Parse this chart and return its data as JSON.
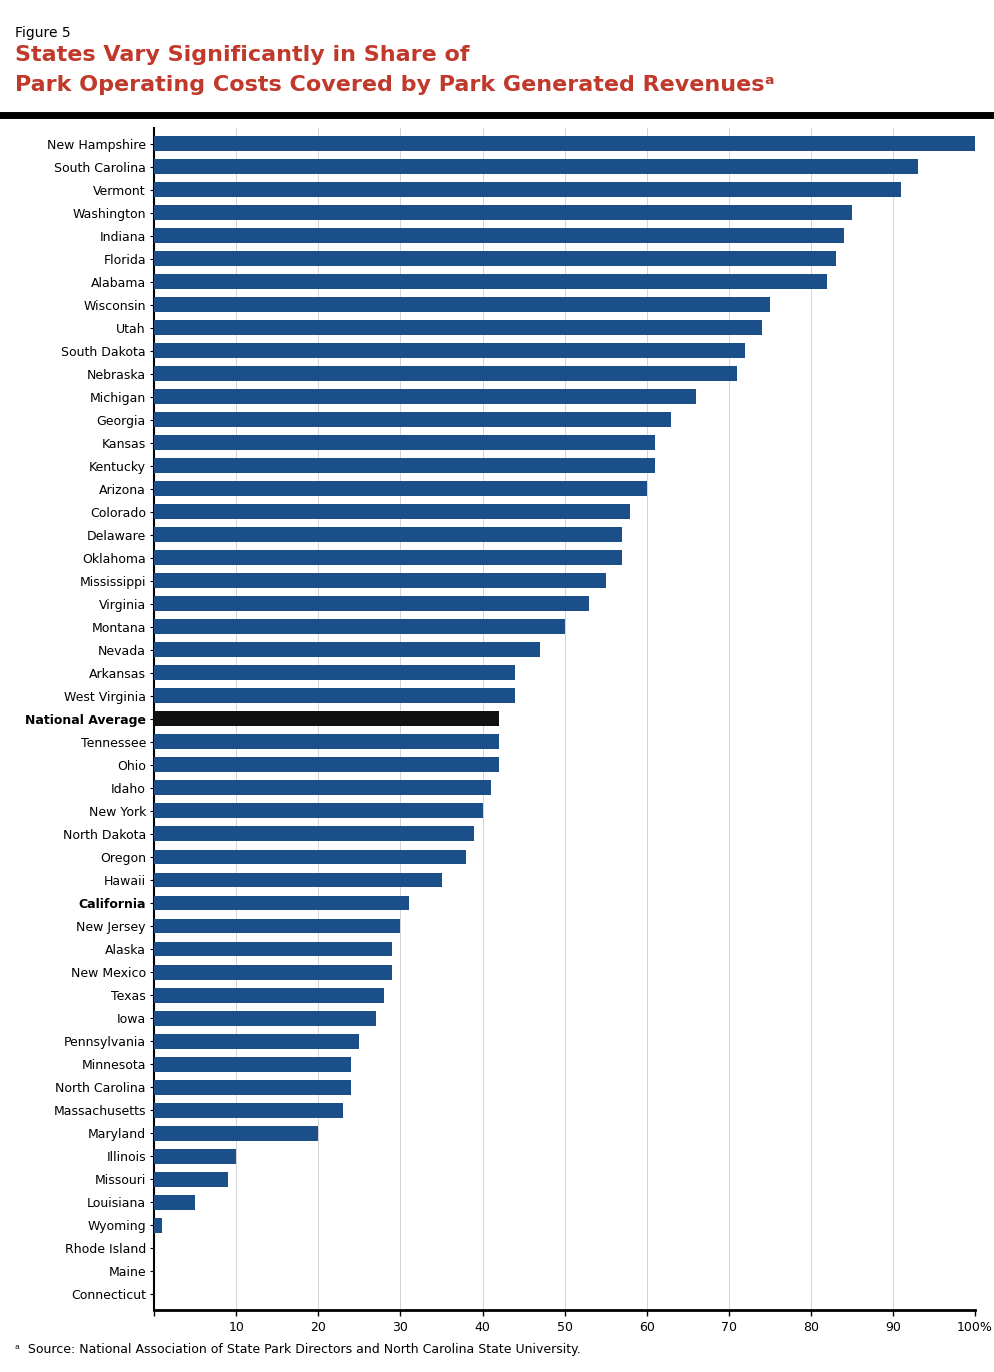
{
  "title_label": "Figure 5",
  "title_line1": "States Vary Significantly in Share of",
  "title_line2": "Park Operating Costs Covered by Park Generated Revenuesᵃ",
  "footnote": "ᵃ  Source: National Association of State Park Directors and North Carolina State University.",
  "bar_color": "#1B4F8A",
  "national_avg_color": "#111111",
  "california_color": "#1B4F8A",
  "categories": [
    "New Hampshire",
    "South Carolina",
    "Vermont",
    "Washington",
    "Indiana",
    "Florida",
    "Alabama",
    "Wisconsin",
    "Utah",
    "South Dakota",
    "Nebraska",
    "Michigan",
    "Georgia",
    "Kansas",
    "Kentucky",
    "Arizona",
    "Colorado",
    "Delaware",
    "Oklahoma",
    "Mississippi",
    "Virginia",
    "Montana",
    "Nevada",
    "Arkansas",
    "West Virginia",
    "National Average",
    "Tennessee",
    "Ohio",
    "Idaho",
    "New York",
    "North Dakota",
    "Oregon",
    "Hawaii",
    "California",
    "New Jersey",
    "Alaska",
    "New Mexico",
    "Texas",
    "Iowa",
    "Pennsylvania",
    "Minnesota",
    "North Carolina",
    "Massachusetts",
    "Maryland",
    "Illinois",
    "Missouri",
    "Louisiana",
    "Wyoming",
    "Rhode Island",
    "Maine",
    "Connecticut"
  ],
  "values": [
    100,
    93,
    91,
    85,
    84,
    83,
    82,
    75,
    74,
    72,
    71,
    66,
    63,
    61,
    61,
    60,
    58,
    57,
    57,
    55,
    53,
    50,
    47,
    44,
    44,
    42,
    42,
    42,
    41,
    40,
    39,
    38,
    35,
    31,
    30,
    29,
    29,
    28,
    27,
    25,
    24,
    24,
    23,
    20,
    10,
    9,
    5,
    1,
    0,
    0,
    0
  ],
  "xticks": [
    0,
    10,
    20,
    30,
    40,
    50,
    60,
    70,
    80,
    90,
    100
  ],
  "xtick_labels": [
    "",
    "10",
    "20",
    "30",
    "40",
    "50",
    "60",
    "70",
    "80",
    "90",
    "100%"
  ],
  "bold_labels": [
    "National Average",
    "California"
  ],
  "title_label_fontsize": 10,
  "title_fontsize": 16,
  "bar_label_fontsize": 9,
  "xtick_fontsize": 9,
  "footnote_fontsize": 9
}
